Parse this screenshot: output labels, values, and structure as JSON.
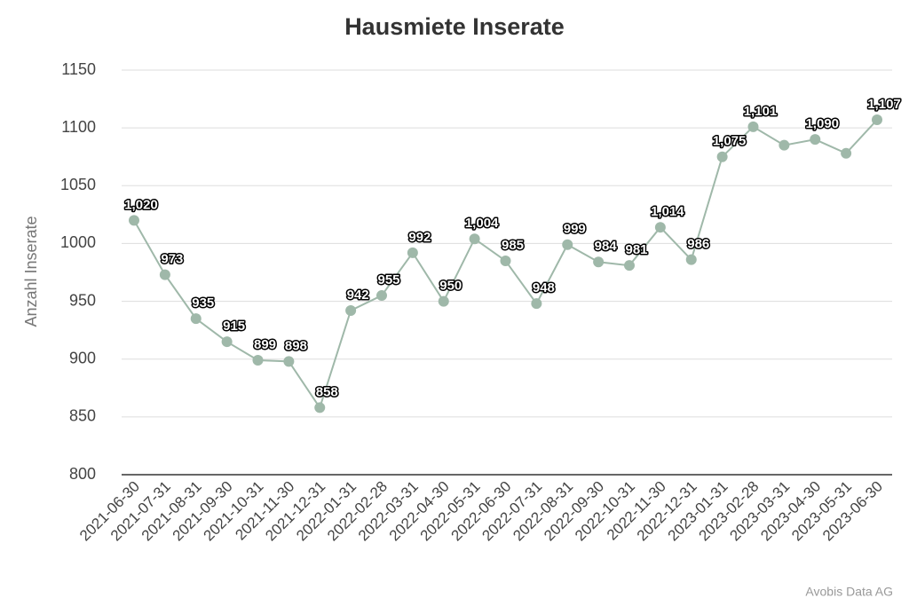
{
  "chart_data": {
    "type": "line",
    "title": "Hausmiete Inserate",
    "ylabel": "Anzahl Inserate",
    "source": "Avobis Data AG",
    "categories": [
      "2021-06-30",
      "2021-07-31",
      "2021-08-31",
      "2021-09-30",
      "2021-10-31",
      "2021-11-30",
      "2021-12-31",
      "2022-01-31",
      "2022-02-28",
      "2022-03-31",
      "2022-04-30",
      "2022-05-31",
      "2022-06-30",
      "2022-07-31",
      "2022-08-31",
      "2022-09-30",
      "2022-10-31",
      "2022-11-30",
      "2022-12-31",
      "2023-01-31",
      "2023-02-28",
      "2023-03-31",
      "2023-04-30",
      "2023-05-31",
      "2023-06-30"
    ],
    "series": [
      {
        "name": "Anzahl Inserate",
        "color": "#9fb8a9",
        "values": [
          1020,
          973,
          935,
          915,
          899,
          898,
          858,
          942,
          955,
          992,
          950,
          1004,
          985,
          948,
          999,
          984,
          981,
          1014,
          986,
          1075,
          1101,
          1085,
          1090,
          1078,
          1107
        ],
        "value_labels": [
          "1,020",
          "973",
          "935",
          "915",
          "899",
          "898",
          "858",
          "942",
          "955",
          "992",
          "950",
          "1,004",
          "985",
          "948",
          "999",
          "984",
          "981",
          "1,014",
          "986",
          "1,075",
          "1,101",
          null,
          "1,090",
          null,
          "1,107"
        ]
      }
    ],
    "ylim": [
      800,
      1150
    ],
    "yticks": [
      800,
      850,
      900,
      950,
      1000,
      1050,
      1100,
      1150
    ],
    "grid": true
  }
}
